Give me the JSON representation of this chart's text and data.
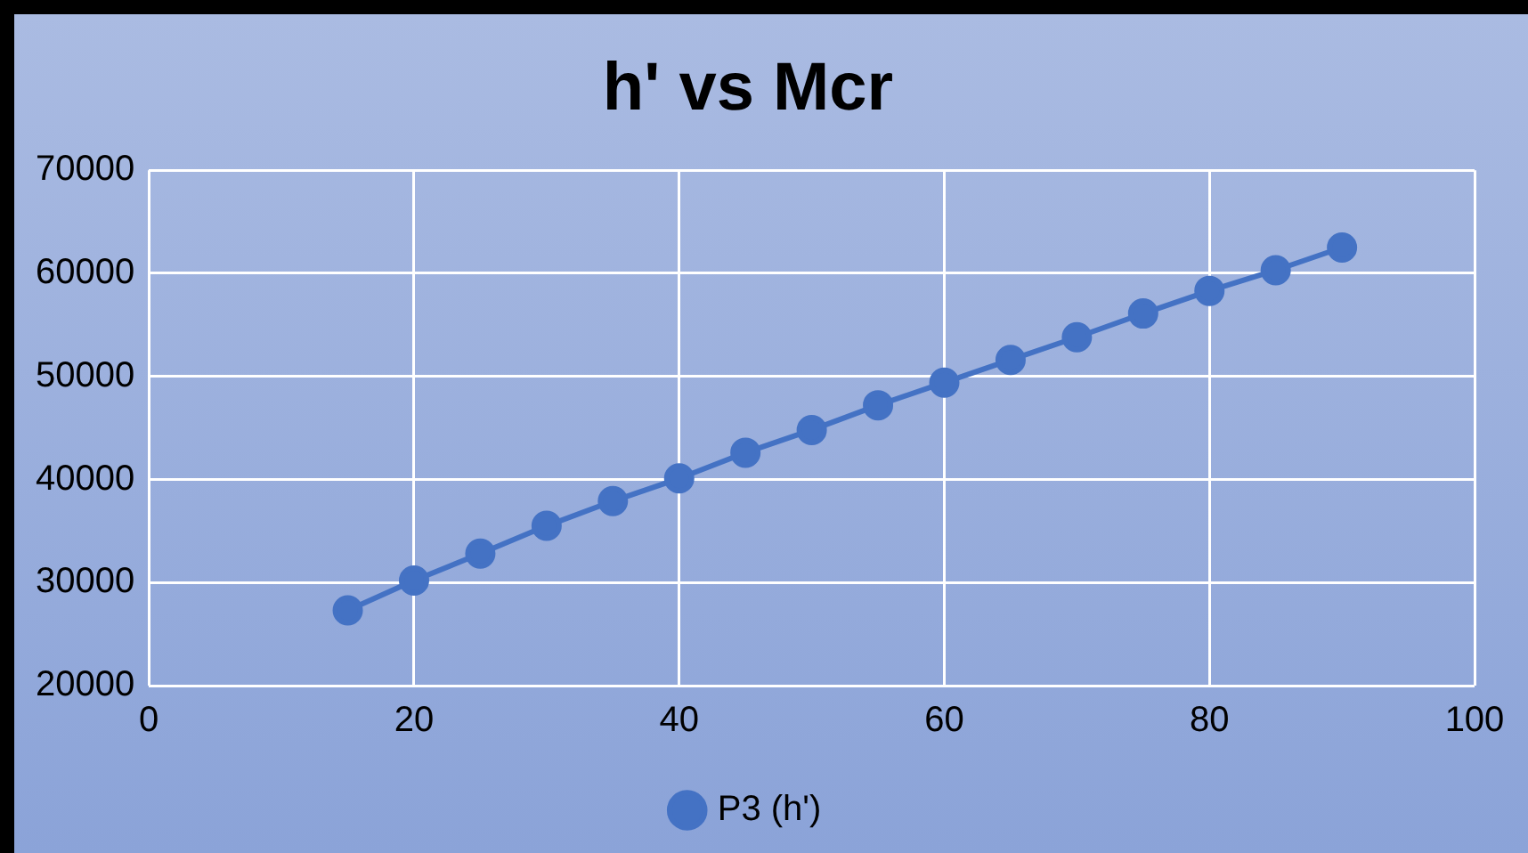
{
  "chart_data": {
    "type": "line",
    "title": "h' vs Mcr",
    "x": [
      15,
      20,
      25,
      30,
      35,
      40,
      45,
      50,
      55,
      60,
      65,
      70,
      75,
      80,
      85,
      90
    ],
    "series": [
      {
        "name": "P3 (h')",
        "color": "#4472c4",
        "values": [
          27300,
          30200,
          32800,
          35500,
          37900,
          40100,
          42600,
          44800,
          47200,
          49400,
          51600,
          53800,
          56100,
          58300,
          60300,
          62500
        ]
      }
    ],
    "xlim": [
      0,
      100
    ],
    "xticks": [
      0,
      20,
      40,
      60,
      80,
      100
    ],
    "ylim": [
      20000,
      70000
    ],
    "yticks": [
      20000,
      30000,
      40000,
      50000,
      60000,
      70000
    ],
    "grid": true,
    "legend": "bottom",
    "marker": "circle",
    "line_style": "solid"
  }
}
